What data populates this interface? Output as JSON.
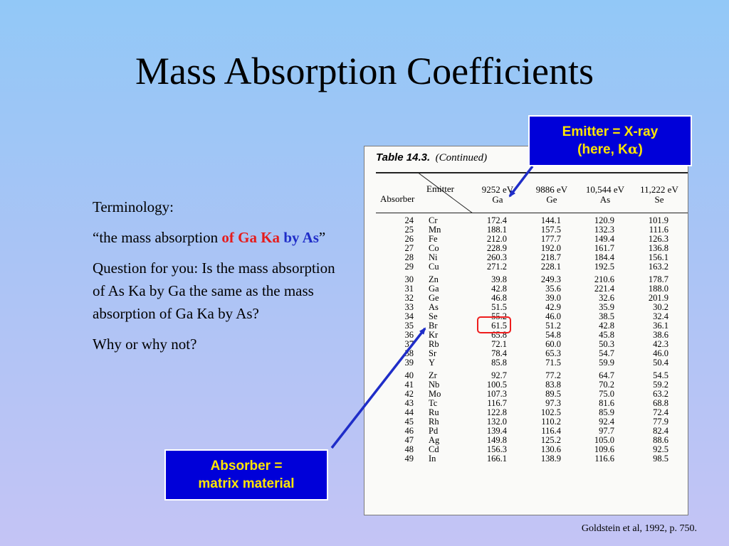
{
  "slide": {
    "title": "Mass Absorption Coefficients",
    "notes": {
      "heading": "Terminology:",
      "quote_open": "“the mass absorption ",
      "quote_red": "of Ga Ka",
      "quote_space": " ",
      "quote_blue": "by As",
      "quote_close": "”",
      "question": "Question for you: Is the mass absorption of As Ka by Ga the same as the mass absorption of Ga Ka by As?",
      "why": "Why or why not?"
    },
    "callout_emitter": {
      "line1": "Emitter = X-ray",
      "line2_prefix": "(here, K",
      "line2_symbol": "α",
      "line2_suffix": ")"
    },
    "callout_absorber": {
      "line1": "Absorber =",
      "line2": "matrix material"
    },
    "citation": "Goldstein et al, 1992, p. 750.",
    "colors": {
      "callout_bg": "#0000d9",
      "callout_text": "#ffe600",
      "accent_red": "#e51c1c",
      "accent_blue": "#1f2dc8",
      "arrow": "#1f2dc8",
      "ring": "#ee1d1d"
    }
  },
  "table": {
    "caption_number": "Table 14.3.",
    "caption_note": "(Continued)",
    "label_emitter": "Emitter",
    "label_absorber": "Absorber",
    "columns": [
      {
        "energy": "9252 eV",
        "element": "Ga"
      },
      {
        "energy": "9886 eV",
        "element": "Ge"
      },
      {
        "energy": "10,544 eV",
        "element": "As"
      },
      {
        "energy": "11,222 eV",
        "element": "Se"
      }
    ],
    "highlighted_value": "51.5",
    "groups": [
      [
        {
          "z": "24",
          "sym": "Cr",
          "v": [
            "172.4",
            "144.1",
            "120.9",
            "101.9"
          ]
        },
        {
          "z": "25",
          "sym": "Mn",
          "v": [
            "188.1",
            "157.5",
            "132.3",
            "111.6"
          ]
        },
        {
          "z": "26",
          "sym": "Fe",
          "v": [
            "212.0",
            "177.7",
            "149.4",
            "126.3"
          ]
        },
        {
          "z": "27",
          "sym": "Co",
          "v": [
            "228.9",
            "192.0",
            "161.7",
            "136.8"
          ]
        },
        {
          "z": "28",
          "sym": "Ni",
          "v": [
            "260.3",
            "218.7",
            "184.4",
            "156.1"
          ]
        },
        {
          "z": "29",
          "sym": "Cu",
          "v": [
            "271.2",
            "228.1",
            "192.5",
            "163.2"
          ]
        }
      ],
      [
        {
          "z": "30",
          "sym": "Zn",
          "v": [
            "39.8",
            "249.3",
            "210.6",
            "178.7"
          ]
        },
        {
          "z": "31",
          "sym": "Ga",
          "v": [
            "42.8",
            "35.6",
            "221.4",
            "188.0"
          ]
        },
        {
          "z": "32",
          "sym": "Ge",
          "v": [
            "46.8",
            "39.0",
            "32.6",
            "201.9"
          ]
        },
        {
          "z": "33",
          "sym": "As",
          "v": [
            "51.5",
            "42.9",
            "35.9",
            "30.2"
          ]
        },
        {
          "z": "34",
          "sym": "Se",
          "v": [
            "55.2",
            "46.0",
            "38.5",
            "32.4"
          ]
        },
        {
          "z": "35",
          "sym": "Br",
          "v": [
            "61.5",
            "51.2",
            "42.8",
            "36.1"
          ]
        },
        {
          "z": "36",
          "sym": "Kr",
          "v": [
            "65.8",
            "54.8",
            "45.8",
            "38.6"
          ]
        },
        {
          "z": "37",
          "sym": "Rb",
          "v": [
            "72.1",
            "60.0",
            "50.3",
            "42.3"
          ]
        },
        {
          "z": "38",
          "sym": "Sr",
          "v": [
            "78.4",
            "65.3",
            "54.7",
            "46.0"
          ]
        },
        {
          "z": "39",
          "sym": "Y",
          "v": [
            "85.8",
            "71.5",
            "59.9",
            "50.4"
          ]
        }
      ],
      [
        {
          "z": "40",
          "sym": "Zr",
          "v": [
            "92.7",
            "77.2",
            "64.7",
            "54.5"
          ]
        },
        {
          "z": "41",
          "sym": "Nb",
          "v": [
            "100.5",
            "83.8",
            "70.2",
            "59.2"
          ]
        },
        {
          "z": "42",
          "sym": "Mo",
          "v": [
            "107.3",
            "89.5",
            "75.0",
            "63.2"
          ]
        },
        {
          "z": "43",
          "sym": "Tc",
          "v": [
            "116.7",
            "97.3",
            "81.6",
            "68.8"
          ]
        },
        {
          "z": "44",
          "sym": "Ru",
          "v": [
            "122.8",
            "102.5",
            "85.9",
            "72.4"
          ]
        },
        {
          "z": "45",
          "sym": "Rh",
          "v": [
            "132.0",
            "110.2",
            "92.4",
            "77.9"
          ]
        },
        {
          "z": "46",
          "sym": "Pd",
          "v": [
            "139.4",
            "116.4",
            "97.7",
            "82.4"
          ]
        },
        {
          "z": "47",
          "sym": "Ag",
          "v": [
            "149.8",
            "125.2",
            "105.0",
            "88.6"
          ]
        },
        {
          "z": "48",
          "sym": "Cd",
          "v": [
            "156.3",
            "130.6",
            "109.6",
            "92.5"
          ]
        },
        {
          "z": "49",
          "sym": "In",
          "v": [
            "166.1",
            "138.9",
            "116.6",
            "98.5"
          ]
        }
      ]
    ]
  }
}
